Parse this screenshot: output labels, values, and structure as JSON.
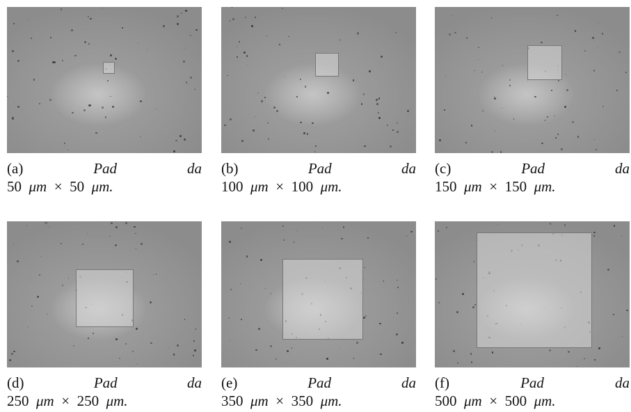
{
  "panels": [
    {
      "label": "(a)",
      "word": "Pad",
      "prep": "da",
      "width": "50",
      "times": "×",
      "height": "50",
      "unit": "μm",
      "end": "."
    },
    {
      "label": "(b)",
      "word": "Pad",
      "prep": "da",
      "width": "100",
      "times": "×",
      "height": "100",
      "unit": "μm",
      "end": "."
    },
    {
      "label": "(c)",
      "word": "Pad",
      "prep": "da",
      "width": "150",
      "times": "×",
      "height": "150",
      "unit": "μm",
      "end": "."
    },
    {
      "label": "(d)",
      "word": "Pad",
      "prep": "da",
      "width": "250",
      "times": "×",
      "height": "250",
      "unit": "μm",
      "end": "."
    },
    {
      "label": "(e)",
      "word": "Pad",
      "prep": "da",
      "width": "350",
      "times": "×",
      "height": "350",
      "unit": "μm",
      "end": "."
    },
    {
      "label": "(f)",
      "word": "Pad",
      "prep": "da",
      "width": "500",
      "times": "×",
      "height": "500",
      "unit": "μm",
      "end": "."
    }
  ]
}
